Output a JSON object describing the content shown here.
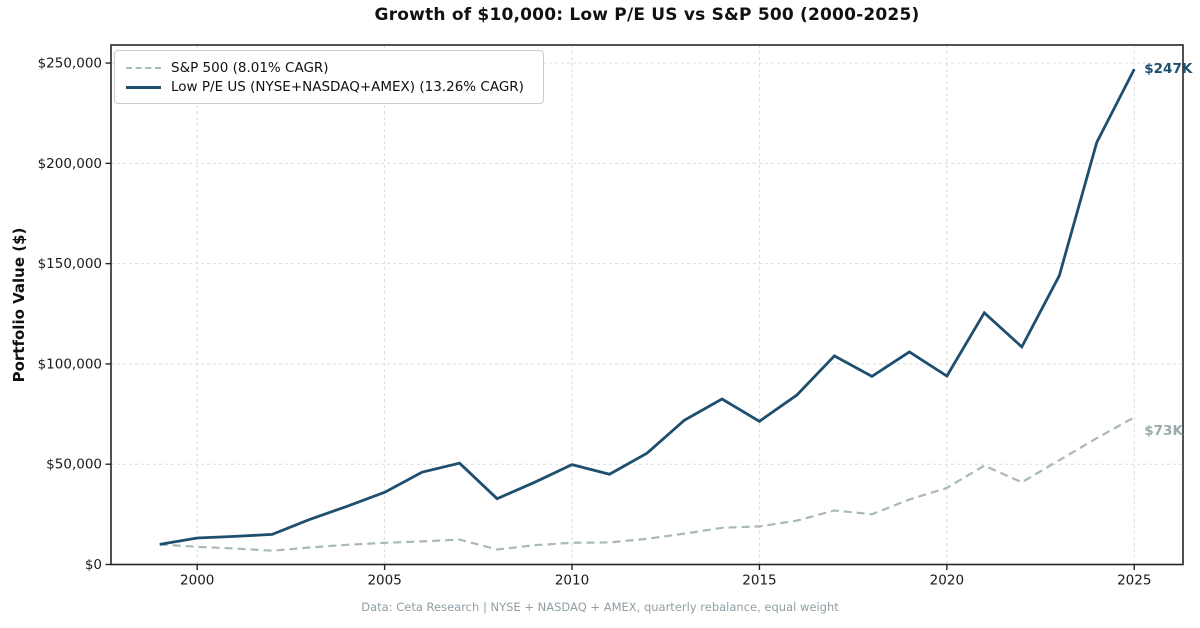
{
  "chart_data": {
    "type": "line",
    "title": "Growth of $10,000: Low P/E US vs S&P 500 (2000-2025)",
    "xlabel": "",
    "ylabel": "Portfolio Value ($)",
    "footer": "Data: Ceta Research | NYSE + NASDAQ + AMEX, quarterly rebalance, equal weight",
    "x": [
      1999,
      2000,
      2001,
      2002,
      2003,
      2004,
      2005,
      2006,
      2007,
      2008,
      2009,
      2010,
      2011,
      2012,
      2013,
      2014,
      2015,
      2016,
      2017,
      2018,
      2019,
      2020,
      2021,
      2022,
      2023,
      2024,
      2025
    ],
    "series": [
      {
        "name": "S&P 500 (8.01% CAGR)",
        "style": "dashed",
        "color": "#a9b8ba",
        "values": [
          10000,
          8800,
          8000,
          6900,
          8500,
          9800,
          10800,
          11500,
          12400,
          7500,
          9600,
          10800,
          11000,
          12800,
          15400,
          18300,
          19000,
          21900,
          26900,
          25100,
          32400,
          38200,
          49300,
          41000,
          52000,
          63000,
          73400
        ]
      },
      {
        "name": "Low P/E US (NYSE+NASDAQ+AMEX) (13.26% CAGR)",
        "style": "solid",
        "color": "#1e4f6e",
        "values": [
          10000,
          13200,
          14000,
          15000,
          22500,
          29000,
          36000,
          46000,
          50500,
          32800,
          41000,
          49800,
          45000,
          55500,
          72000,
          82500,
          71400,
          84500,
          104000,
          93800,
          106000,
          94000,
          125500,
          108500,
          144000,
          210500,
          247000
        ]
      }
    ],
    "xlim": [
      1997.7,
      2026.3
    ],
    "ylim": [
      0,
      259000
    ],
    "grid": true,
    "legend_position": "upper-left",
    "x_ticks": [
      {
        "value": 2000,
        "label": "2000"
      },
      {
        "value": 2005,
        "label": "2005"
      },
      {
        "value": 2010,
        "label": "2010"
      },
      {
        "value": 2015,
        "label": "2015"
      },
      {
        "value": 2020,
        "label": "2020"
      },
      {
        "value": 2025,
        "label": "2025"
      }
    ],
    "y_ticks": [
      {
        "value": 0,
        "label": "$0"
      },
      {
        "value": 50000,
        "label": "$50,000"
      },
      {
        "value": 100000,
        "label": "$100,000"
      },
      {
        "value": 150000,
        "label": "$150,000"
      },
      {
        "value": 200000,
        "label": "$200,000"
      },
      {
        "value": 250000,
        "label": "$250,000"
      }
    ],
    "annotations": [
      {
        "text": "$247K",
        "year": 2025,
        "value": 247000,
        "color": "#1e4f6e"
      },
      {
        "text": "$73K",
        "year": 2025,
        "value": 73400,
        "color": "#9aabab"
      }
    ],
    "colors": {
      "grid": "#dcdcdc",
      "spine": "#262626",
      "tick_label": "#1a1a1a"
    }
  }
}
